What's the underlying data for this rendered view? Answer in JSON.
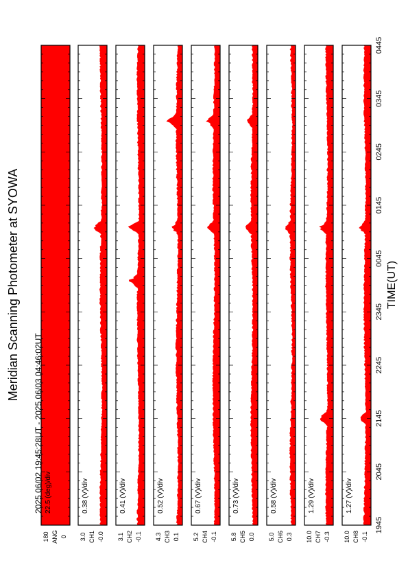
{
  "title": "Meridian Scanning Photometer at SYOWA",
  "time_range": "2025 06/02 19:45:28UT - 2025 06/03 04:46:02UT",
  "xlabel": "TIME(UT)",
  "colors": {
    "trace": "#ff0000",
    "frame": "#000000",
    "background": "#ffffff"
  },
  "chart_data": {
    "type": "area",
    "orientation": "rotated-90-cw",
    "x_ticks": [
      "1945",
      "2045",
      "2145",
      "2245",
      "2345",
      "0045",
      "0145",
      "0245",
      "0345",
      "0445"
    ],
    "x_range_ut": [
      "19:45",
      "04:45"
    ],
    "panels": [
      {
        "scale_label": "22.5 (deg)/div",
        "ytick_top": "180",
        "ytick_bottom": "0",
        "channel": "ANG",
        "ylim": [
          0,
          180
        ],
        "kind": "angle"
      },
      {
        "scale_label": "0.38 (V)/div",
        "ytick_top": "3.0",
        "ytick_bottom": "-0.0",
        "channel": "CH1",
        "ylim": [
          0.0,
          3.0
        ],
        "events": [
          {
            "t": "01:20",
            "v": 1.0
          }
        ]
      },
      {
        "scale_label": "0.41 (V)/div",
        "ytick_top": "3.1",
        "ytick_bottom": "-0.1",
        "channel": "CH2",
        "ylim": [
          -0.1,
          3.1
        ],
        "events": [
          {
            "t": "00:20",
            "v": 1.1
          },
          {
            "t": "01:20",
            "v": 1.3
          }
        ]
      },
      {
        "scale_label": "0.52 (V)/div",
        "ytick_top": "4.3",
        "ytick_bottom": "0.1",
        "channel": "CH3",
        "ylim": [
          0.1,
          4.3
        ],
        "events": [
          {
            "t": "01:20",
            "v": 1.1
          },
          {
            "t": "03:20",
            "v": 1.5
          }
        ]
      },
      {
        "scale_label": "0.67 (V)/div",
        "ytick_top": "5.2",
        "ytick_bottom": "-0.1",
        "channel": "CH4",
        "ylim": [
          -0.1,
          5.2
        ],
        "events": [
          {
            "t": "01:20",
            "v": 1.5
          },
          {
            "t": "03:20",
            "v": 1.6
          }
        ]
      },
      {
        "scale_label": "0.73 (V)/div",
        "ytick_top": "5.8",
        "ytick_bottom": "0.0",
        "channel": "CH5",
        "ylim": [
          0.0,
          5.8
        ],
        "events": [
          {
            "t": "01:20",
            "v": 1.6
          },
          {
            "t": "03:20",
            "v": 1.4
          }
        ]
      },
      {
        "scale_label": "0.58 (V)/div",
        "ytick_top": "5.0",
        "ytick_bottom": "0.3",
        "channel": "CH6",
        "ylim": [
          0.3,
          5.0
        ],
        "events": [
          {
            "t": "01:20",
            "v": 1.0
          }
        ]
      },
      {
        "scale_label": "1.29 (V)/div",
        "ytick_top": "10.0",
        "ytick_bottom": "-0.3",
        "channel": "CH7",
        "ylim": [
          -0.3,
          10.0
        ],
        "events": [
          {
            "t": "21:45",
            "v": 3.5
          },
          {
            "t": "01:20",
            "v": 3.0
          }
        ]
      },
      {
        "scale_label": "1.27 (V)/div",
        "ytick_top": "10.0",
        "ytick_bottom": "-0.1",
        "channel": "CH8",
        "ylim": [
          -0.1,
          10.0
        ],
        "events": [
          {
            "t": "21:45",
            "v": 2.5
          },
          {
            "t": "01:20",
            "v": 3.0
          }
        ]
      }
    ]
  }
}
